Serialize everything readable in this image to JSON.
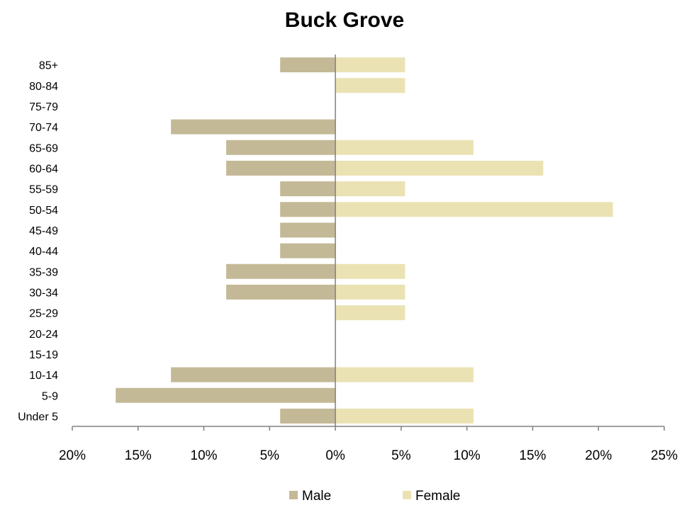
{
  "chart_data": {
    "type": "bar",
    "orientation": "horizontal",
    "title": "Buck Grove",
    "categories": [
      "Under 5",
      "5-9",
      "10-14",
      "15-19",
      "20-24",
      "25-29",
      "30-34",
      "35-39",
      "40-44",
      "45-49",
      "50-54",
      "55-59",
      "60-64",
      "65-69",
      "70-74",
      "75-79",
      "80-84",
      "85+"
    ],
    "series": [
      {
        "name": "Male",
        "color": "#c4b996",
        "values": [
          4.2,
          16.7,
          12.5,
          0,
          0,
          0,
          8.3,
          8.3,
          4.2,
          4.2,
          4.2,
          4.2,
          8.3,
          8.3,
          12.5,
          0,
          0,
          4.2
        ]
      },
      {
        "name": "Female",
        "color": "#ebe2b4",
        "values": [
          10.5,
          0,
          10.5,
          0,
          0,
          5.3,
          5.3,
          5.3,
          0,
          0,
          21.1,
          5.3,
          15.8,
          10.5,
          0,
          0,
          5.3,
          5.3
        ]
      }
    ],
    "x_ticks": [
      "20%",
      "15%",
      "10%",
      "5%",
      "0%",
      "5%",
      "10%",
      "15%",
      "20%",
      "25%"
    ],
    "xlim": [
      -20,
      25
    ],
    "legend_position": "bottom",
    "grid": false
  }
}
